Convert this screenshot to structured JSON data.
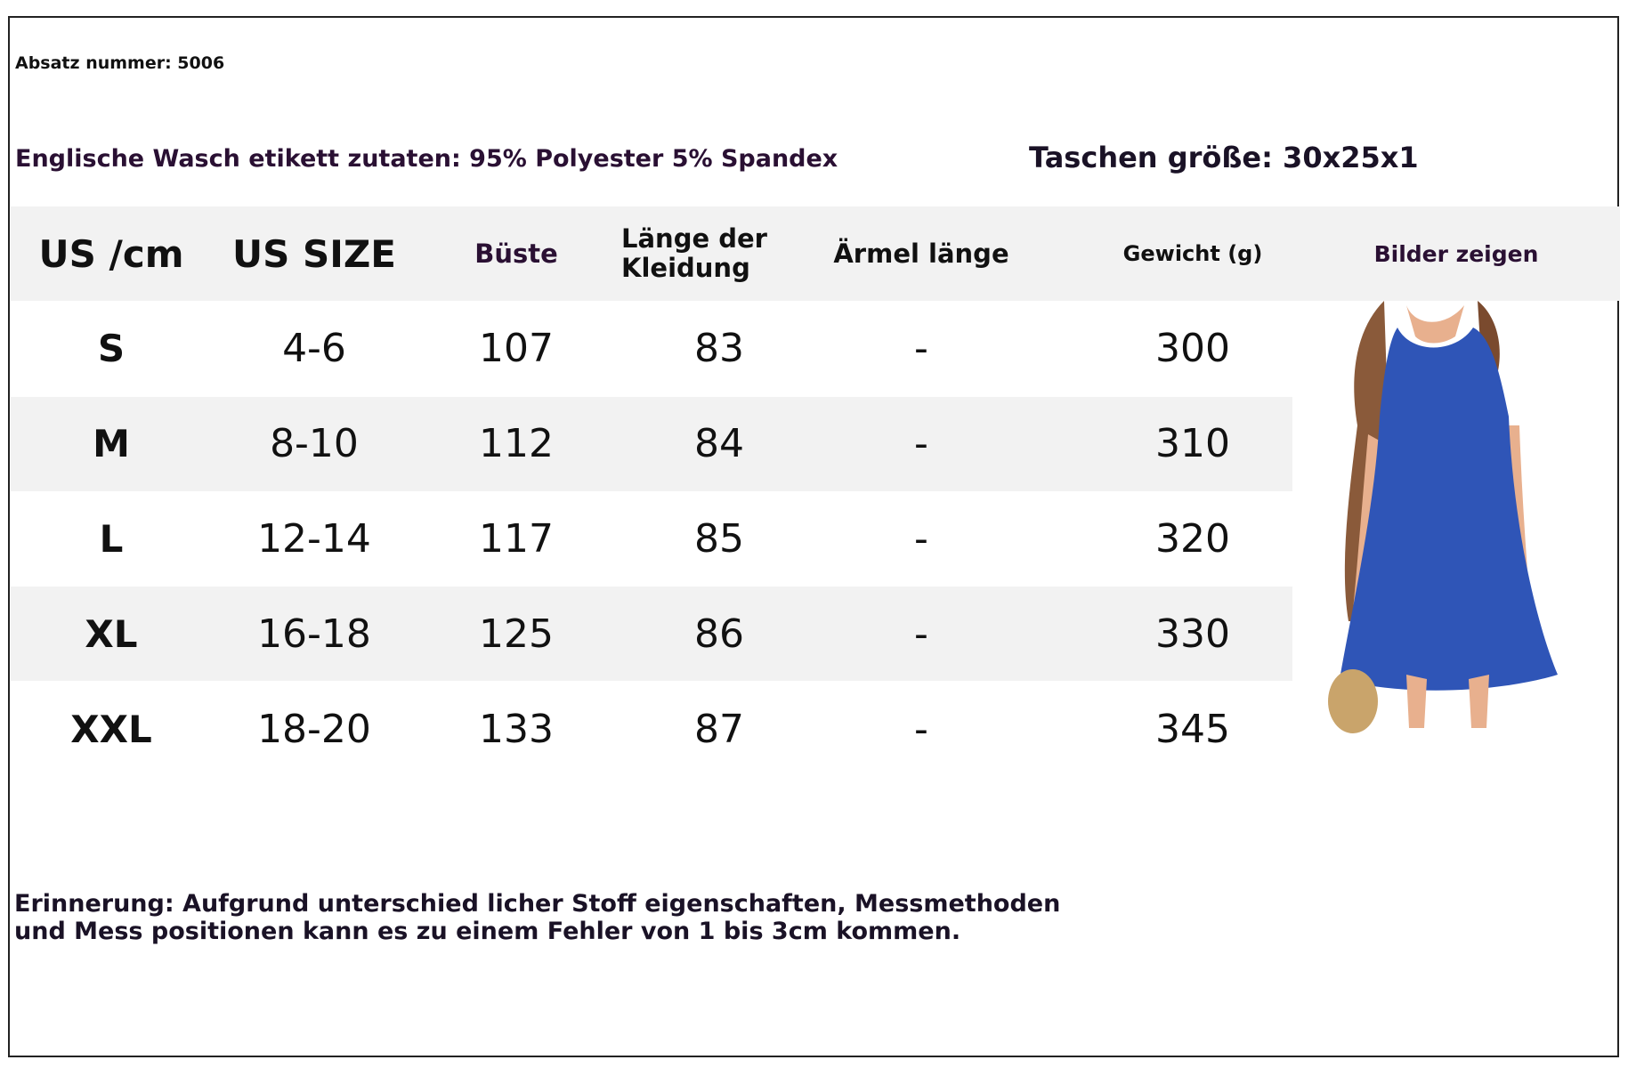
{
  "header": {
    "article": "Absatz nummer: 5006",
    "composition": "Englische Wasch etikett zutaten: 95% Polyester 5% Spandex",
    "bag_size": "Taschen größe: 30x25x1"
  },
  "table": {
    "columns": [
      "US /cm",
      "US SIZE",
      "Büste",
      "Länge der Kleidung",
      "Ärmel länge",
      "Gewicht (g)",
      "Bilder zeigen"
    ],
    "rows": [
      [
        "S",
        "4-6",
        "107",
        "83",
        "-",
        "300"
      ],
      [
        "M",
        "8-10",
        "112",
        "84",
        "-",
        "310"
      ],
      [
        "L",
        "12-14",
        "117",
        "85",
        "-",
        "320"
      ],
      [
        "XL",
        "16-18",
        "125",
        "86",
        "-",
        "330"
      ],
      [
        "XXL",
        "18-20",
        "133",
        "87",
        "-",
        "345"
      ]
    ]
  },
  "footer": {
    "note": "Erinnerung: Aufgrund unterschied licher Stoff eigenschaften, Messmethoden und Mess positionen kann es zu einem Fehler von 1 bis 3cm kommen."
  }
}
